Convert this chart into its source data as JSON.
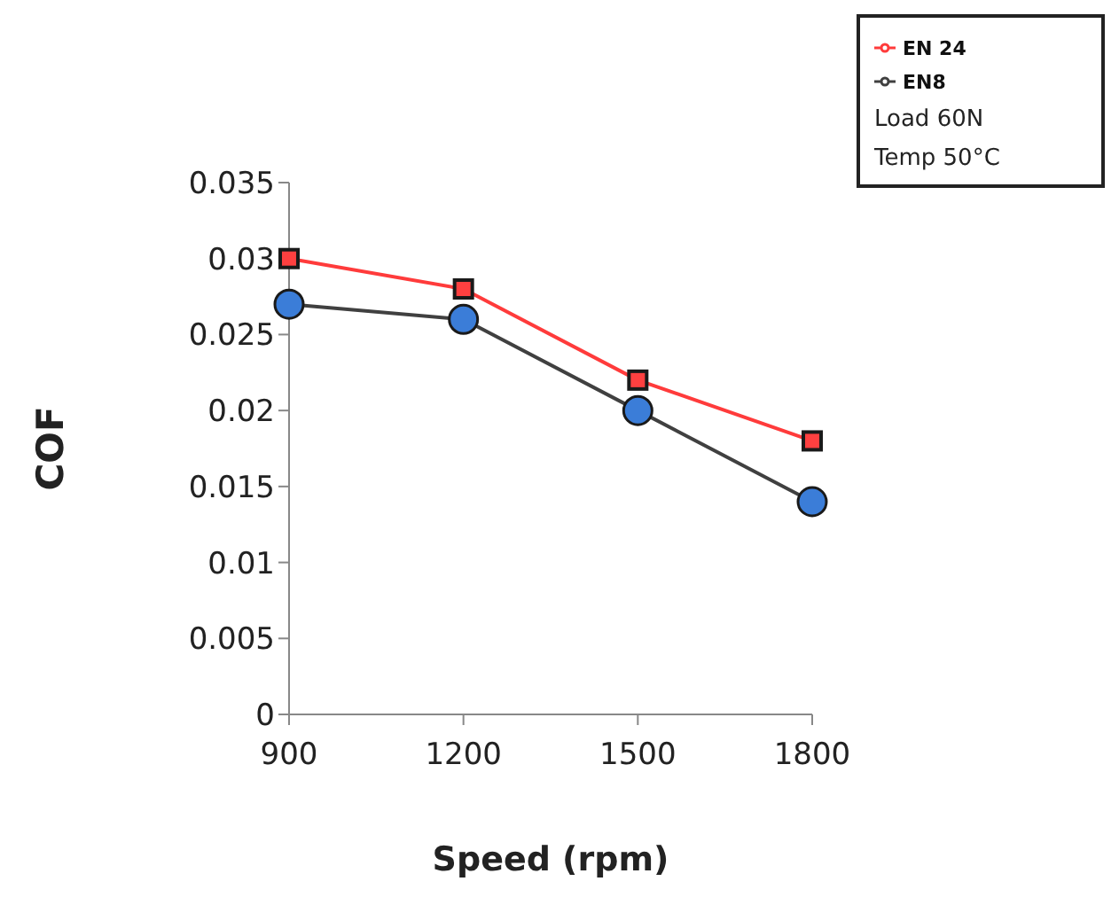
{
  "chart_data": {
    "type": "line",
    "xlabel": "Speed (rpm)",
    "ylabel": "COF",
    "categories": [
      "900",
      "1200",
      "1500",
      "1800"
    ],
    "series": [
      {
        "name": "EN8",
        "color": "#404040",
        "marker": "circle",
        "values": [
          0.027,
          0.026,
          0.02,
          0.014
        ]
      },
      {
        "name": "EN 24",
        "color": "#ff3b3b",
        "marker": "square",
        "values": [
          0.03,
          0.028,
          0.022,
          0.018
        ]
      }
    ],
    "ylim": [
      0,
      0.035
    ],
    "yticks": [
      0,
      0.005,
      0.01,
      0.015,
      0.02,
      0.025,
      0.03,
      0.035
    ],
    "grid": false,
    "legend": "top right",
    "annotations": [
      "Load 60N",
      "Temp 50°C"
    ]
  }
}
